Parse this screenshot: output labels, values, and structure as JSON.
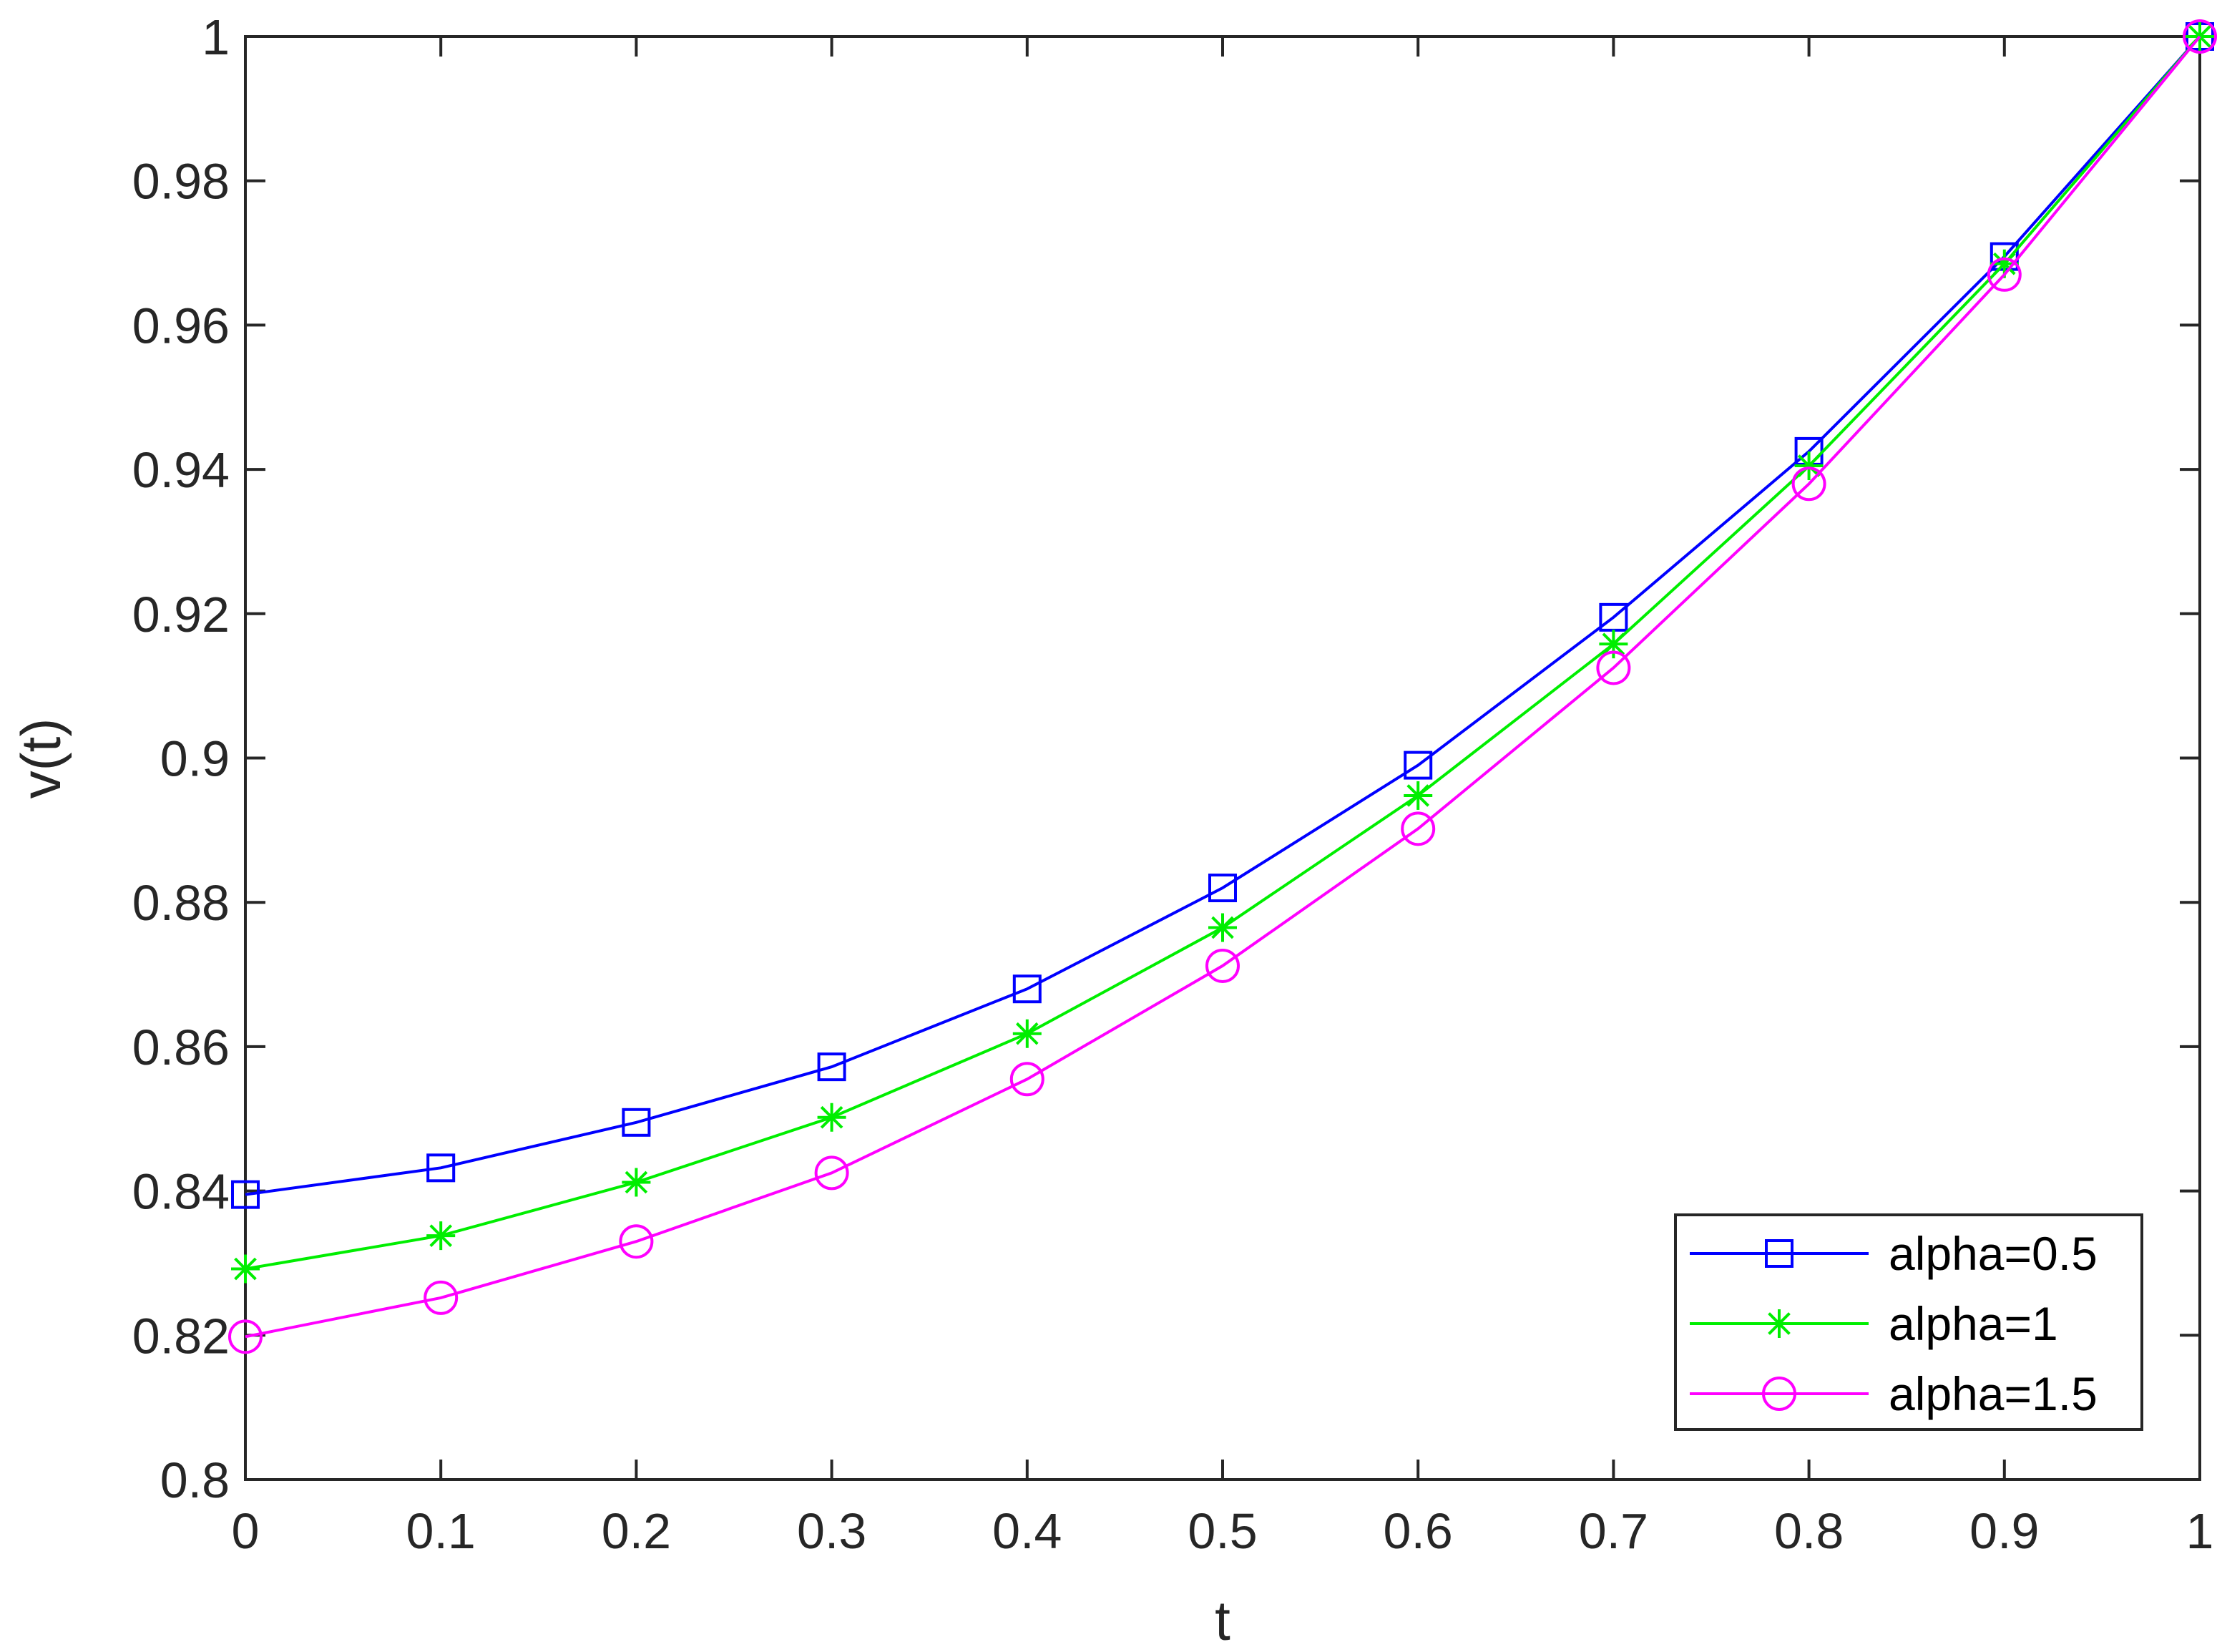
{
  "chart_data": {
    "type": "line",
    "title": "",
    "xlabel": "t",
    "ylabel": "v(t)",
    "xlim": [
      0,
      1
    ],
    "ylim": [
      0.8,
      1
    ],
    "grid": false,
    "legend_position": "bottom-right",
    "x": [
      0,
      0.1,
      0.2,
      0.3,
      0.4,
      0.5,
      0.6,
      0.7,
      0.8,
      0.9,
      1
    ],
    "x_ticks": [
      "0",
      "0.1",
      "0.2",
      "0.3",
      "0.4",
      "0.5",
      "0.6",
      "0.7",
      "0.8",
      "0.9",
      "1"
    ],
    "x_tick_values": [
      0,
      0.1,
      0.2,
      0.3,
      0.4,
      0.5,
      0.6,
      0.7,
      0.8,
      0.9,
      1
    ],
    "y_ticks": [
      "0.8",
      "0.82",
      "0.84",
      "0.86",
      "0.88",
      "0.9",
      "0.92",
      "0.94",
      "0.96",
      "0.98",
      "1"
    ],
    "y_tick_values": [
      0.8,
      0.82,
      0.84,
      0.86,
      0.88,
      0.9,
      0.92,
      0.94,
      0.96,
      0.98,
      1
    ],
    "series": [
      {
        "name": "alpha=0.5",
        "color": "#0000ff",
        "marker": "square",
        "values": [
          0.8395,
          0.8432,
          0.8495,
          0.8572,
          0.868,
          0.882,
          0.899,
          0.9195,
          0.9425,
          0.9695,
          1.0
        ]
      },
      {
        "name": "alpha=1",
        "color": "#00ee00",
        "marker": "asterisk",
        "values": [
          0.8292,
          0.8338,
          0.8412,
          0.8502,
          0.8618,
          0.8765,
          0.8948,
          0.9158,
          0.9405,
          0.9685,
          1.0
        ]
      },
      {
        "name": "alpha=1.5",
        "color": "#ff00ff",
        "marker": "circle",
        "values": [
          0.8198,
          0.8252,
          0.833,
          0.8425,
          0.8555,
          0.8712,
          0.8902,
          0.9125,
          0.938,
          0.967,
          1.0
        ]
      }
    ]
  }
}
